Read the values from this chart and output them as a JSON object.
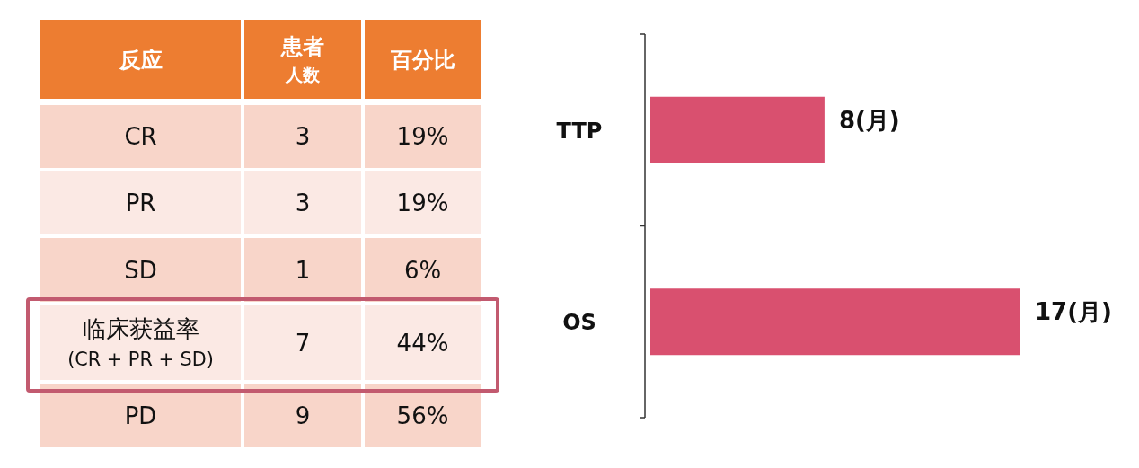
{
  "chart_data": [
    {
      "type": "other",
      "ylabel": "反应",
      "categories": [
        "CR",
        "PR",
        "SD",
        "临床获益率\n(CR + PR + SD)",
        "PD"
      ],
      "series": [
        {
          "name": "患者人数",
          "values": [
            3,
            3,
            1,
            7,
            9
          ],
          "colors": [
            "#f8d5c9",
            "#fbe9e4",
            "#f8d5c9",
            "#fbe9e4",
            "#f8d5c9"
          ]
        },
        {
          "name": "百分比",
          "values": [
            19,
            19,
            6,
            44,
            56
          ],
          "value_labels": [
            "19%",
            "19%",
            "6%",
            "44%",
            "56%"
          ],
          "colors": [
            "#f8d5c9",
            "#fbe9e4",
            "#f8d5c9",
            "#fbe9e4",
            "#f8d5c9"
          ]
        }
      ],
      "data_labels": true,
      "colors": [
        "#f8d5c9",
        "#fbe9e4",
        "#f8d5c9",
        "#fbe9e4",
        "#f8d5c9"
      ]
    },
    {
      "type": "bar",
      "orientation": "horizontal",
      "categories": [
        "TTP",
        "OS"
      ],
      "series": [
        {
          "color": "#d9506f",
          "values": [
            8,
            17
          ],
          "value_labels": [
            "8(月)",
            "17(月)"
          ]
        }
      ]
    }
  ]
}
